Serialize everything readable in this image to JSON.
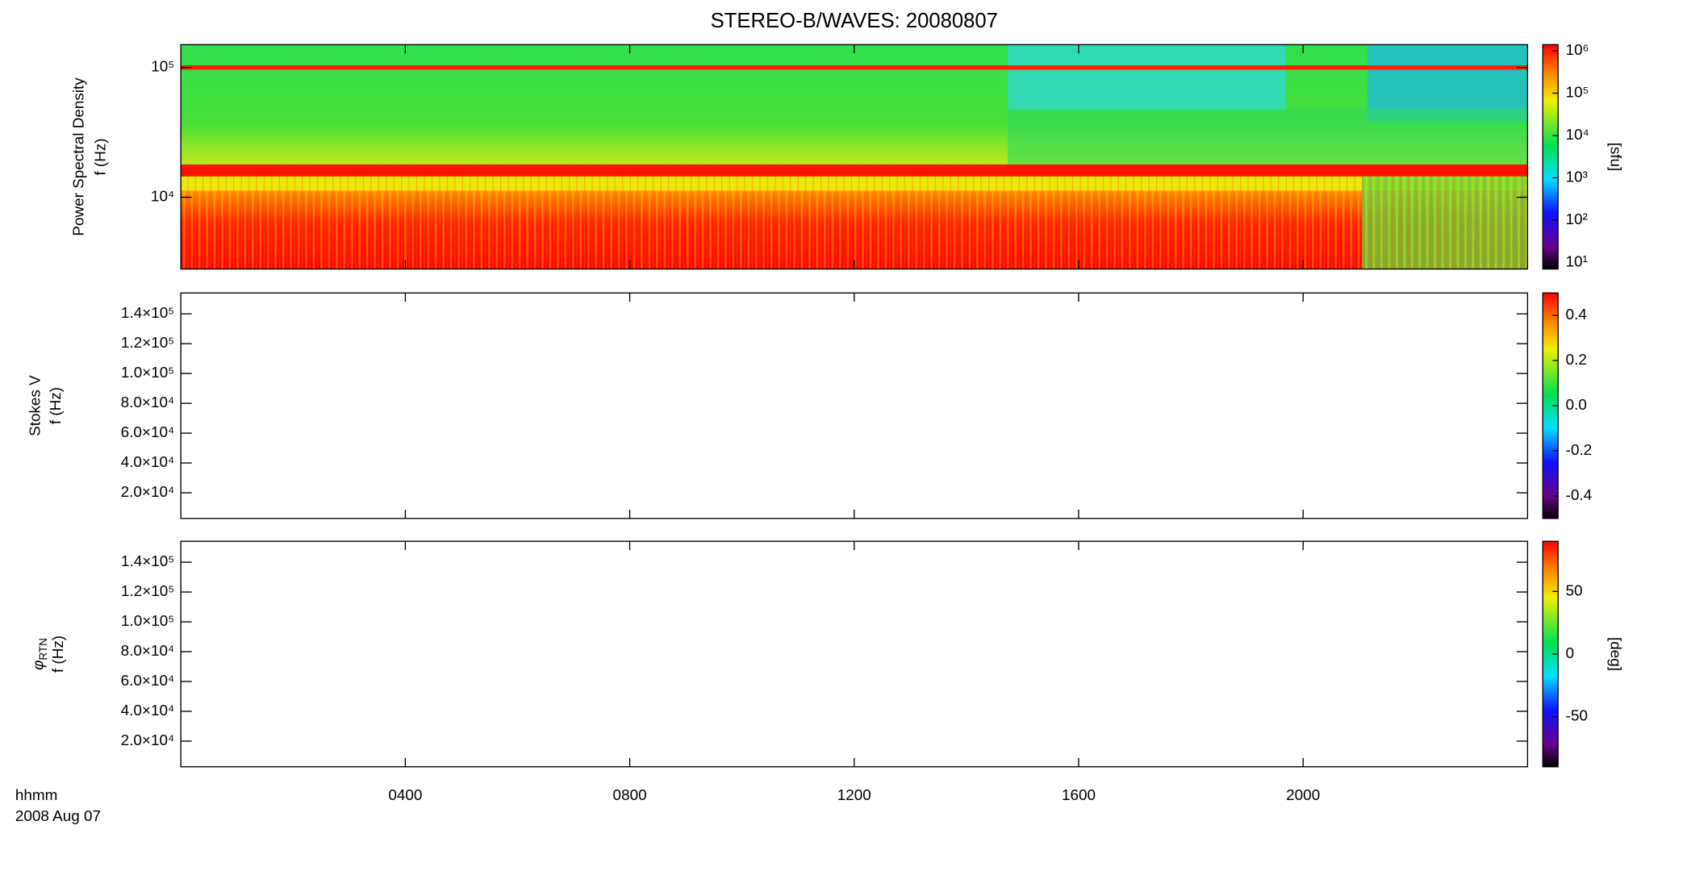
{
  "chart_data": [
    {
      "type": "heatmap",
      "title": "STEREO-B/WAVES: 20080807",
      "ylabel": "Power Spectral Density",
      "ylabel2": "f (Hz)",
      "ylog": true,
      "ylim": [
        2800,
        150000
      ],
      "yticks": [
        {
          "value": 10000,
          "label": "10⁴"
        },
        {
          "value": 100000,
          "label": "10⁵"
        }
      ],
      "colorbar": {
        "log": true,
        "lim": [
          7,
          1400000
        ],
        "label": "[sfu]",
        "ticks": [
          {
            "value": 10,
            "label": "10¹"
          },
          {
            "value": 100,
            "label": "10²"
          },
          {
            "value": 1000,
            "label": "10³"
          },
          {
            "value": 10000,
            "label": "10⁴"
          },
          {
            "value": 100000,
            "label": "10⁵"
          },
          {
            "value": 1000000,
            "label": "10⁶"
          }
        ]
      }
    },
    {
      "type": "heatmap",
      "ylabel": "Stokes V",
      "ylabel2": "f (Hz)",
      "ylog": false,
      "ylim": [
        2800,
        154000
      ],
      "yticks": [
        {
          "value": 20000,
          "label": "2.0×10⁴"
        },
        {
          "value": 40000,
          "label": "4.0×10⁴"
        },
        {
          "value": 60000,
          "label": "6.0×10⁴"
        },
        {
          "value": 80000,
          "label": "8.0×10⁴"
        },
        {
          "value": 100000,
          "label": "1.0×10⁵"
        },
        {
          "value": 120000,
          "label": "1.2×10⁵"
        },
        {
          "value": 140000,
          "label": "1.4×10⁵"
        }
      ],
      "colorbar": {
        "log": false,
        "lim": [
          -0.5,
          0.5
        ],
        "ticks": [
          -0.4,
          -0.2,
          {
            "value": 0,
            "label": "0.0"
          },
          0.2,
          0.4
        ]
      }
    },
    {
      "type": "heatmap",
      "ylabel": "φ",
      "ylabel_sub": "RTN",
      "ylabel2": "f (Hz)",
      "ylog": false,
      "ylim": [
        2800,
        154000
      ],
      "yticks": [
        {
          "value": 20000,
          "label": "2.0×10⁴"
        },
        {
          "value": 40000,
          "label": "4.0×10⁴"
        },
        {
          "value": 60000,
          "label": "6.0×10⁴"
        },
        {
          "value": 80000,
          "label": "8.0×10⁴"
        },
        {
          "value": 100000,
          "label": "1.0×10⁵"
        },
        {
          "value": 120000,
          "label": "1.2×10⁵"
        },
        {
          "value": 140000,
          "label": "1.4×10⁵"
        }
      ],
      "colorbar": {
        "log": false,
        "lim": [
          -90,
          90
        ],
        "label": "[deg]",
        "ticks": [
          -50,
          0,
          50
        ]
      },
      "xlim": [
        0,
        24
      ],
      "xticks": [
        {
          "value": 4,
          "label": "0400"
        },
        {
          "value": 8,
          "label": "0800"
        },
        {
          "value": 12,
          "label": "1200"
        },
        {
          "value": 16,
          "label": "1600"
        },
        {
          "value": 20,
          "label": "2000"
        }
      ],
      "xlabel": "hhmm",
      "date": "2008 Aug 07"
    }
  ]
}
